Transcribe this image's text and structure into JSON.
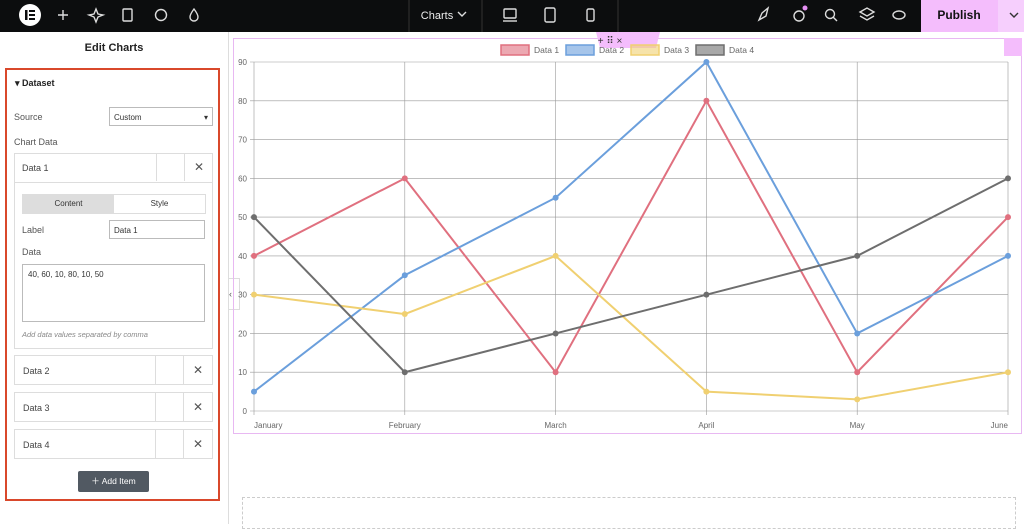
{
  "topbar": {
    "page_title": "Charts",
    "publish": "Publish"
  },
  "panel": {
    "title": "Edit Charts",
    "section": "Dataset",
    "source_label": "Source",
    "source_value": "Custom",
    "chart_data_label": "Chart Data",
    "items": [
      "Data 1",
      "Data 2",
      "Data 3",
      "Data 4"
    ],
    "tabs": [
      "Content",
      "Style"
    ],
    "label_field": "Label",
    "label_value": "Data 1",
    "data_field": "Data",
    "data_value": "40, 60, 10, 80, 10, 50",
    "hint": "Add data values separated by comma",
    "add_button": "Add Item"
  },
  "chart_data": {
    "type": "line",
    "categories": [
      "January",
      "February",
      "March",
      "April",
      "May",
      "June"
    ],
    "series": [
      {
        "name": "Data 1",
        "color": "#e0707f",
        "values": [
          40,
          60,
          10,
          80,
          10,
          50
        ]
      },
      {
        "name": "Data 2",
        "color": "#6b9fdc",
        "values": [
          5,
          35,
          55,
          90,
          20,
          40
        ]
      },
      {
        "name": "Data 3",
        "color": "#f0d071",
        "values": [
          30,
          25,
          40,
          5,
          3,
          10
        ]
      },
      {
        "name": "Data 4",
        "color": "#6e6e6e",
        "values": [
          50,
          10,
          20,
          30,
          40,
          60
        ]
      }
    ],
    "ylim": [
      0,
      90
    ],
    "yticks": [
      0,
      10,
      20,
      30,
      40,
      50,
      60,
      70,
      80,
      90
    ],
    "grid": true,
    "legend": "top"
  }
}
